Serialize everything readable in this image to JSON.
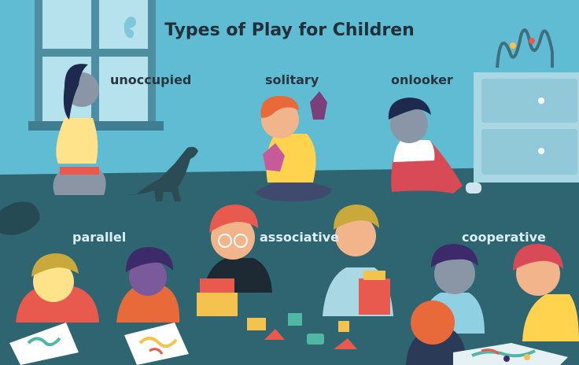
{
  "title": "Types of Play for Children",
  "play_types": {
    "unoccupied": "unoccupied",
    "solitary": "solitary",
    "onlooker": "onlooker",
    "parallel": "parallel",
    "associative": "associative",
    "cooperative": "cooperative"
  },
  "colors": {
    "wall": "#5fbcd3",
    "floor": "#2f6471",
    "title_text": "#22303a",
    "label_dark": "#263540",
    "label_light": "#d9f0f6"
  }
}
